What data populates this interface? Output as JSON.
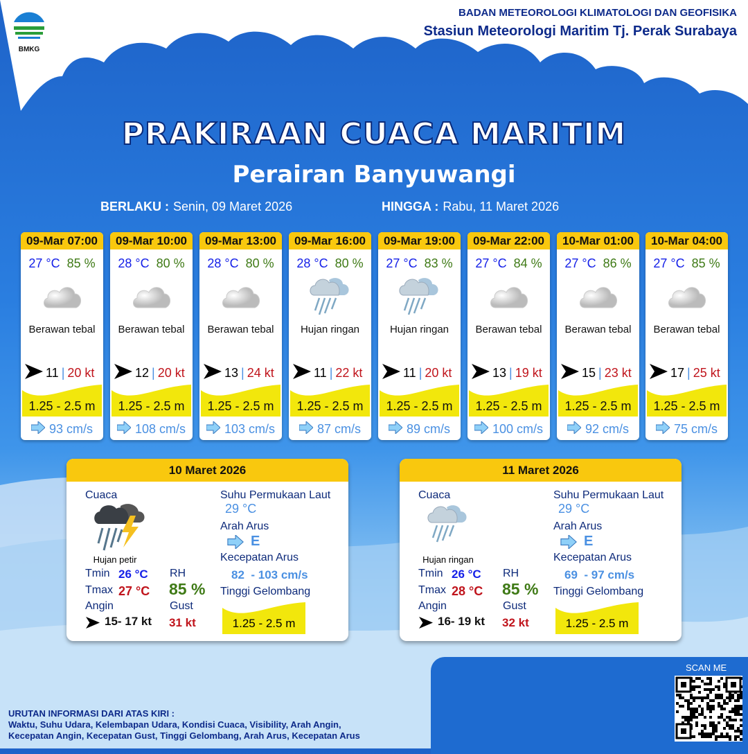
{
  "header": {
    "org_line1": "BADAN METEOROLOGI KLIMATOLOGI DAN GEOFISIKA",
    "org_line2": "Stasiun Meteorologi Maritim Tj. Perak Surabaya",
    "logo_text": "BMKG"
  },
  "title": "PRAKIRAAN CUACA MARITIM",
  "subtitle": "Perairan Banyuwangi",
  "validity": {
    "from_label": "BERLAKU :",
    "from_value": "Senin, 09 Maret 2026",
    "to_label": "HINGGA :",
    "to_value": "Rabu, 11 Maret 2026"
  },
  "colors": {
    "header_yellow": "#f9c80e",
    "temp_blue": "#1520e8",
    "rh_green": "#3f7a16",
    "gust_red": "#c0141c",
    "current_blue": "#4a90e2",
    "wave_yellow": "#f2e70c"
  },
  "forecasts": [
    {
      "time": "09-Mar 07:00",
      "temp": "27 °C",
      "rh": "85 %",
      "icon": "cloudy-icon",
      "weather": "Berawan tebal",
      "wind": "11",
      "gust": "20 kt",
      "wave": "1.25 - 2.5 m",
      "current": "93 cm/s"
    },
    {
      "time": "09-Mar 10:00",
      "temp": "28 °C",
      "rh": "80 %",
      "icon": "cloudy-icon",
      "weather": "Berawan tebal",
      "wind": "12",
      "gust": "20 kt",
      "wave": "1.25 - 2.5 m",
      "current": "108 cm/s"
    },
    {
      "time": "09-Mar 13:00",
      "temp": "28 °C",
      "rh": "80 %",
      "icon": "cloudy-icon",
      "weather": "Berawan tebal",
      "wind": "13",
      "gust": "24 kt",
      "wave": "1.25 - 2.5 m",
      "current": "103 cm/s"
    },
    {
      "time": "09-Mar 16:00",
      "temp": "28 °C",
      "rh": "80 %",
      "icon": "light-rain-icon",
      "weather": "Hujan ringan",
      "wind": "11",
      "gust": "22 kt",
      "wave": "1.25 - 2.5 m",
      "current": "87 cm/s"
    },
    {
      "time": "09-Mar 19:00",
      "temp": "27 °C",
      "rh": "83 %",
      "icon": "light-rain-icon",
      "weather": "Hujan ringan",
      "wind": "11",
      "gust": "20 kt",
      "wave": "1.25 - 2.5 m",
      "current": "89 cm/s"
    },
    {
      "time": "09-Mar 22:00",
      "temp": "27 °C",
      "rh": "84 %",
      "icon": "cloudy-icon",
      "weather": "Berawan tebal",
      "wind": "13",
      "gust": "19 kt",
      "wave": "1.25 - 2.5 m",
      "current": "100 cm/s"
    },
    {
      "time": "10-Mar 01:00",
      "temp": "27 °C",
      "rh": "86 %",
      "icon": "cloudy-icon",
      "weather": "Berawan tebal",
      "wind": "15",
      "gust": "23 kt",
      "wave": "1.25 - 2.5 m",
      "current": "92 cm/s"
    },
    {
      "time": "10-Mar 04:00",
      "temp": "27 °C",
      "rh": "85 %",
      "icon": "cloudy-icon",
      "weather": "Berawan tebal",
      "wind": "17",
      "gust": "25 kt",
      "wave": "1.25 - 2.5 m",
      "current": "75 cm/s"
    }
  ],
  "daily": [
    {
      "date": "10 Maret 2026",
      "icon": "thunderstorm-icon",
      "weather": "Hujan petir",
      "tmin": "26 °C",
      "tmax": "27 °C",
      "rh": "85 %",
      "wind": "15- 17 kt",
      "gust": "31 kt",
      "sst": "29 °C",
      "current_dir": "E",
      "current_speed": "82  - 103 cm/s",
      "wave": "1.25 - 2.5 m"
    },
    {
      "date": "11 Maret 2026",
      "icon": "light-rain-icon",
      "weather": "Hujan ringan",
      "tmin": "26 °C",
      "tmax": "28 °C",
      "rh": "85 %",
      "wind": "16- 19 kt",
      "gust": "32 kt",
      "sst": "29 °C",
      "current_dir": "E",
      "current_speed": "69  - 97 cm/s",
      "wave": "1.25 - 2.5 m"
    }
  ],
  "labels": {
    "cuaca": "Cuaca",
    "tmin": "Tmin",
    "tmax": "Tmax",
    "angin": "Angin",
    "rh": "RH",
    "gust": "Gust",
    "sst": "Suhu Permukaan Laut",
    "arah": "Arah Arus",
    "kecepatan": "Kecepatan Arus",
    "tinggi": "Tinggi Gelombang"
  },
  "footer": {
    "line1": "URUTAN INFORMASI DARI ATAS KIRI :",
    "line2": "Waktu, Suhu Udara, Kelembapan Udara, Kondisi Cuaca, Visibility, Arah Angin,",
    "line3": "Kecepatan Angin, Kecepatan Gust, Tinggi Gelombang, Arah Arus, Kecepatan Arus"
  },
  "qr": {
    "label": "SCAN ME"
  }
}
